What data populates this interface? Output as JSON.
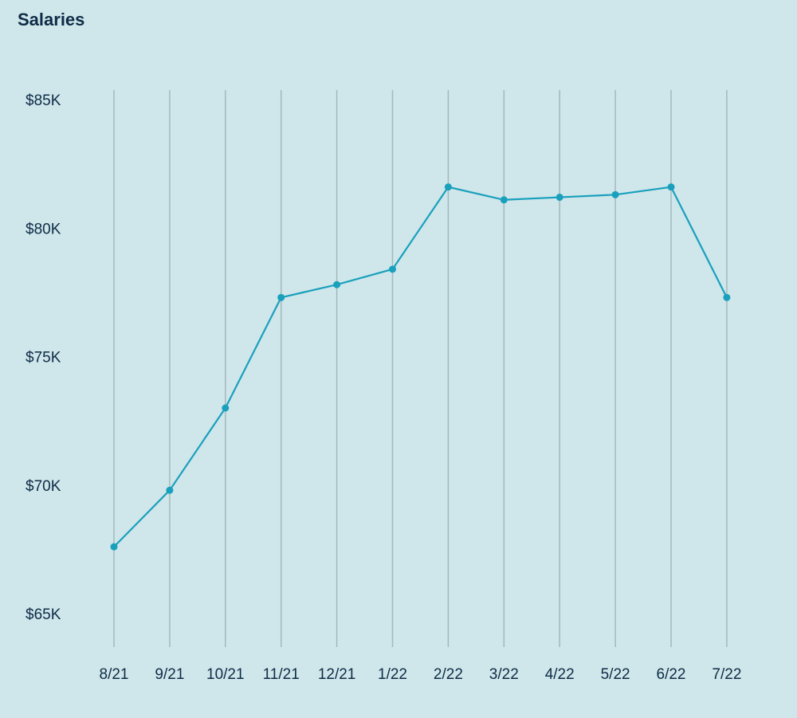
{
  "chart_data": {
    "type": "line",
    "title": "Salaries",
    "xlabel": "",
    "ylabel": "",
    "categories": [
      "8/21",
      "9/21",
      "10/21",
      "11/21",
      "12/21",
      "1/22",
      "2/22",
      "3/22",
      "4/22",
      "5/22",
      "6/22",
      "7/22"
    ],
    "series": [
      {
        "name": "Salaries",
        "values": [
          67600,
          69800,
          73000,
          77300,
          77800,
          78400,
          81600,
          81100,
          81200,
          81300,
          81600,
          77300
        ]
      }
    ],
    "ylim": [
      65000,
      85000
    ],
    "yticks": [
      85000,
      80000,
      75000,
      70000,
      65000
    ],
    "ytick_labels": [
      "$85K",
      "$80K",
      "$75K",
      "$70K",
      "$65K"
    ],
    "grid": "vertical",
    "colors": {
      "line": "#19a0bd",
      "grid": "#a3b9bc",
      "text": "#0e2c47",
      "background": "#cfe6ea"
    }
  }
}
